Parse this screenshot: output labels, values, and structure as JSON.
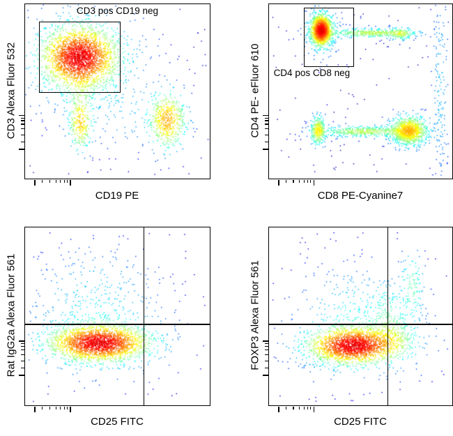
{
  "figure": {
    "kind": "flow-cytometry-density-dot-plots",
    "background": "#ffffff",
    "colormap": "jet",
    "point_color_scale": [
      "#0000b2",
      "#00b7ff",
      "#abff54",
      "#ffb700",
      "#e50000"
    ]
  },
  "ticks": {
    "x_major": [
      0.055,
      0.245
    ],
    "x_minor": [
      0.095,
      0.135,
      0.168,
      0.193,
      0.213,
      0.228
    ],
    "y_major": [
      0.17,
      0.36
    ],
    "y_minor": [
      0.21,
      0.25,
      0.285,
      0.312,
      0.332,
      0.347
    ]
  },
  "chart_data": [
    {
      "type": "scatter",
      "panel": "top-left",
      "xlabel": "CD19 PE",
      "ylabel": "CD3 Alexa Fluor 532",
      "axis_scale": "biexponential",
      "grid": false,
      "gate": {
        "label": "CD3 pos CD19 neg",
        "x0": 0.075,
        "y0": 0.1,
        "x1": 0.51,
        "y1": 0.5,
        "label_x": 0.5,
        "label_y": 0.008,
        "label_anchor": "middle"
      },
      "quadrant": null,
      "populations": [
        {
          "name": "CD3+ CD19- core",
          "cx": 0.295,
          "cy": 0.305,
          "sx": 0.095,
          "sy": 0.082,
          "n": 2300
        },
        {
          "name": "CD3+ CD19- halo",
          "cx": 0.3,
          "cy": 0.315,
          "sx": 0.155,
          "sy": 0.135,
          "n": 520
        },
        {
          "name": "CD3- CD19- lower",
          "cx": 0.3,
          "cy": 0.68,
          "sx": 0.03,
          "sy": 0.075,
          "n": 260
        },
        {
          "name": "bridge-down",
          "cx": 0.3,
          "cy": 0.5,
          "sx": 0.04,
          "sy": 0.1,
          "n": 80
        },
        {
          "name": "CD19+ B cells",
          "cx": 0.77,
          "cy": 0.665,
          "sx": 0.048,
          "sy": 0.078,
          "n": 520
        },
        {
          "name": "mid scatter",
          "cx": 0.56,
          "cy": 0.62,
          "sx": 0.13,
          "sy": 0.1,
          "n": 70
        },
        {
          "name": "background",
          "type": "uniform",
          "x0": 0.02,
          "x1": 0.98,
          "y0": 0.02,
          "y1": 0.98,
          "n": 170
        }
      ]
    },
    {
      "type": "scatter",
      "panel": "top-right",
      "xlabel": "CD8 PE-Cyanine7",
      "ylabel": "CD4 PE- eFluor 610",
      "axis_scale": "biexponential",
      "grid": false,
      "gate": {
        "label": "CD4 pos CD8 neg",
        "x0": 0.19,
        "y0": 0.02,
        "x1": 0.455,
        "y1": 0.35,
        "label_x": 0.025,
        "label_y": 0.365,
        "label_anchor": "start"
      },
      "quadrant": null,
      "populations": [
        {
          "name": "CD4+ CD8- core",
          "cx": 0.285,
          "cy": 0.15,
          "sx": 0.027,
          "sy": 0.042,
          "n": 1350
        },
        {
          "name": "CD4+ halo",
          "cx": 0.29,
          "cy": 0.155,
          "sx": 0.05,
          "sy": 0.07,
          "n": 230
        },
        {
          "name": "CD4+ streak",
          "cx": 0.56,
          "cy": 0.165,
          "sx": 0.125,
          "sy": 0.013,
          "n": 380
        },
        {
          "name": "streak end",
          "cx": 0.72,
          "cy": 0.17,
          "sx": 0.032,
          "sy": 0.018,
          "n": 110
        },
        {
          "name": "CD4- CD8- blob",
          "cx": 0.268,
          "cy": 0.725,
          "sx": 0.02,
          "sy": 0.042,
          "n": 300
        },
        {
          "name": "CD8 band",
          "cx": 0.52,
          "cy": 0.73,
          "sx": 0.13,
          "sy": 0.016,
          "n": 480
        },
        {
          "name": "CD8+ core",
          "cx": 0.765,
          "cy": 0.725,
          "sx": 0.05,
          "sy": 0.042,
          "n": 1050
        },
        {
          "name": "right edge scatter",
          "cx": 0.935,
          "cy": 0.47,
          "sx": 0.022,
          "sy": 0.27,
          "n": 150
        },
        {
          "name": "background",
          "type": "uniform",
          "x0": 0.02,
          "x1": 0.98,
          "y0": 0.02,
          "y1": 0.98,
          "n": 140
        }
      ]
    },
    {
      "type": "scatter",
      "panel": "bottom-left",
      "xlabel": "CD25 FITC",
      "ylabel": "Rat IgG2a Alexa Fluor 561",
      "axis_scale": "biexponential",
      "grid": false,
      "gate": null,
      "quadrant": {
        "x": 0.64,
        "y": 0.542
      },
      "populations": [
        {
          "name": "isotype neg core",
          "cx": 0.4,
          "cy": 0.65,
          "sx": 0.125,
          "sy": 0.048,
          "n": 2200
        },
        {
          "name": "halo",
          "cx": 0.41,
          "cy": 0.625,
          "sx": 0.185,
          "sy": 0.1,
          "n": 430
        },
        {
          "name": "upper scatter",
          "cx": 0.38,
          "cy": 0.38,
          "sx": 0.17,
          "sy": 0.13,
          "n": 210
        },
        {
          "name": "background",
          "type": "uniform",
          "x0": 0.02,
          "x1": 0.98,
          "y0": 0.02,
          "y1": 0.98,
          "n": 120
        }
      ]
    },
    {
      "type": "scatter",
      "panel": "bottom-right",
      "xlabel": "CD25 FITC",
      "ylabel": "FOXP3 Alexa Fluor 561",
      "axis_scale": "biexponential",
      "grid": false,
      "gate": null,
      "quadrant": {
        "x": 0.646,
        "y": 0.542
      },
      "populations": [
        {
          "name": "FOXP3- core",
          "cx": 0.46,
          "cy": 0.665,
          "sx": 0.115,
          "sy": 0.048,
          "n": 2000,
          "rot": -7
        },
        {
          "name": "halo",
          "cx": 0.49,
          "cy": 0.63,
          "sx": 0.17,
          "sy": 0.1,
          "n": 420
        },
        {
          "name": "right tail",
          "cx": 0.68,
          "cy": 0.63,
          "sx": 0.06,
          "sy": 0.06,
          "n": 170
        },
        {
          "name": "upper mid scatter",
          "cx": 0.47,
          "cy": 0.43,
          "sx": 0.15,
          "sy": 0.11,
          "n": 150
        },
        {
          "name": "upper right trail",
          "cx": 0.78,
          "cy": 0.33,
          "sx": 0.03,
          "sy": 0.1,
          "n": 110
        },
        {
          "name": "line scatter",
          "cx": 0.65,
          "cy": 0.5,
          "sx": 0.05,
          "sy": 0.09,
          "n": 110
        },
        {
          "name": "background",
          "type": "uniform",
          "x0": 0.02,
          "x1": 0.98,
          "y0": 0.02,
          "y1": 0.98,
          "n": 120
        }
      ]
    }
  ]
}
